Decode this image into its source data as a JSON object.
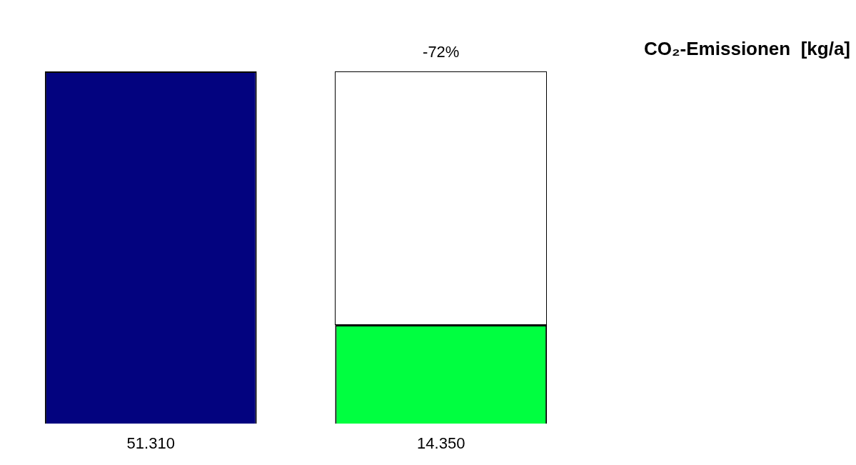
{
  "chart_data": {
    "type": "bar",
    "title": "CO₂-Emissionen  [kg/a]",
    "categories": [
      null,
      null
    ],
    "values": [
      51310,
      14350
    ],
    "colors": [
      "#03037f",
      "#00ff40"
    ],
    "value_labels": [
      "51.310",
      "14.350"
    ],
    "annotations": [
      "-72%"
    ]
  }
}
